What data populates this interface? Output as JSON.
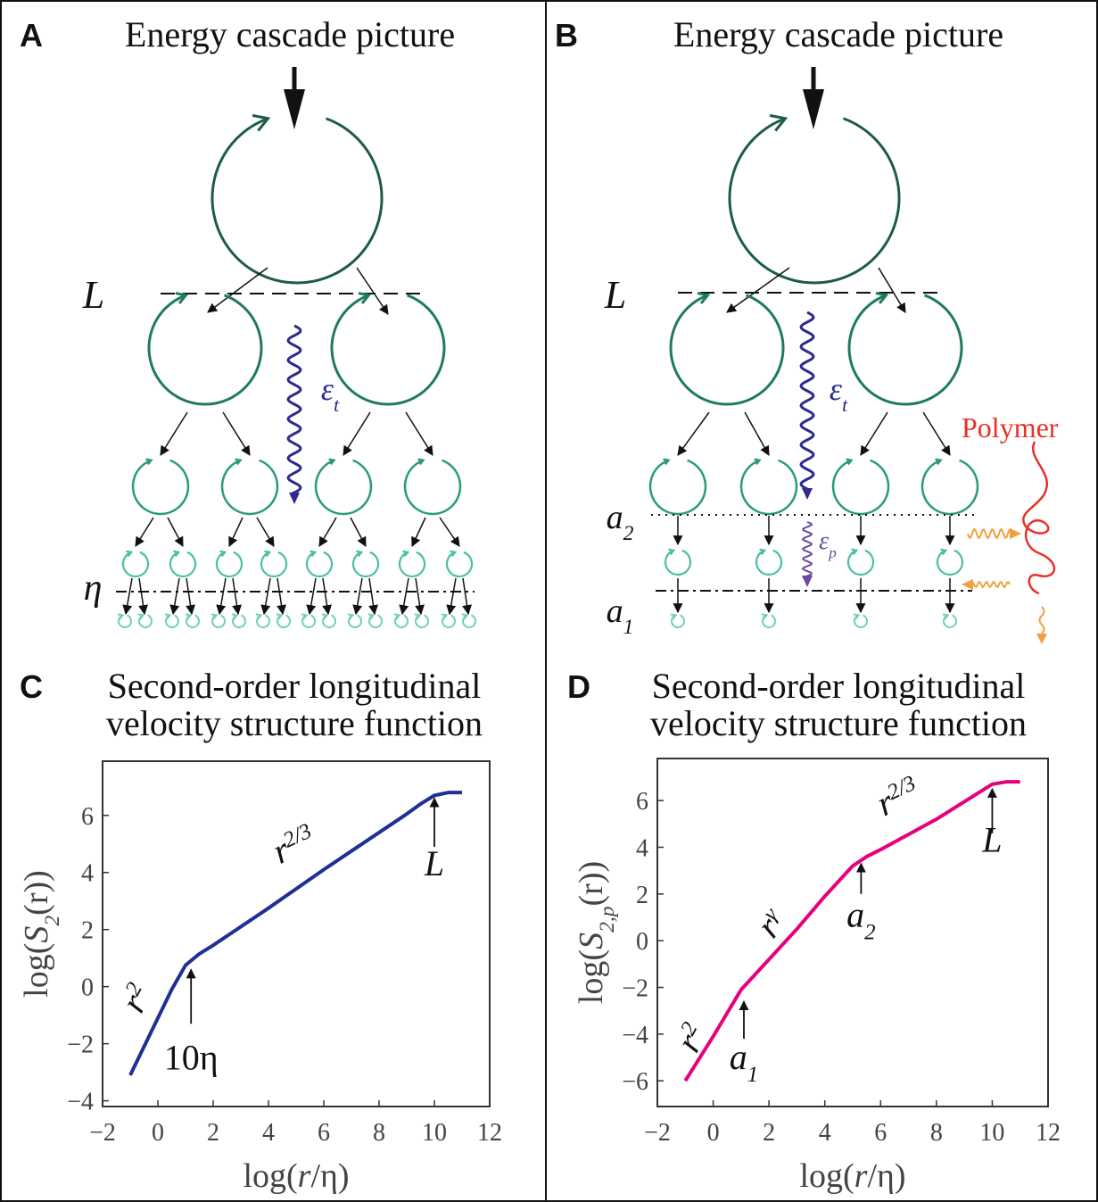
{
  "panels": [
    {
      "letter": "A",
      "title": "Energy cascade picture",
      "labels": [
        {
          "symbol": "L"
        },
        {
          "symbol": "ε",
          "subscript": "t"
        },
        {
          "symbol": "η"
        }
      ]
    },
    {
      "letter": "B",
      "title": "Energy cascade picture",
      "labels": [
        {
          "symbol": "L"
        },
        {
          "symbol": "ε",
          "subscript": "t"
        },
        {
          "symbol": "a",
          "subscript": "2"
        },
        {
          "symbol": "ε",
          "subscript": "p"
        },
        {
          "symbol": "a",
          "subscript": "1"
        },
        {
          "before": "Polymer"
        }
      ]
    }
  ],
  "chart_data": [
    {
      "type": "line",
      "panel_label": "C",
      "title": [
        "Second-order longitudinal",
        "velocity structure function"
      ],
      "x_label": {
        "before": "log(",
        "symbol": "r",
        "after": "/η)"
      },
      "y_label": {
        "before": "log(",
        "symbol": "S",
        "subscript": "2",
        "after": "(r))"
      },
      "x": [
        -1,
        0,
        0.5,
        1,
        1.5,
        2,
        4,
        6,
        8,
        9,
        9.5,
        10,
        10.5,
        11
      ],
      "values": [
        -3.1,
        -1.1,
        -0.1,
        0.75,
        1.15,
        1.45,
        2.75,
        4.1,
        5.4,
        6.05,
        6.4,
        6.7,
        6.8,
        6.8
      ],
      "color": "#1f2f96",
      "xlim": [
        -2,
        12
      ],
      "ylim": [
        -4.2,
        7.9
      ],
      "xticks": [
        {
          "value": -2,
          "label": "−2"
        },
        0,
        2,
        4,
        6,
        8,
        10,
        12
      ],
      "yticks": [
        {
          "value": -4,
          "label": "−4"
        },
        {
          "value": -2,
          "label": "−2"
        },
        0,
        2,
        4,
        6
      ],
      "annotations": [
        {
          "symbol": "r",
          "superscript": "2"
        },
        {
          "symbol": "r",
          "superscript": "2/3"
        },
        {
          "symbol": "L"
        },
        {
          "before": "10η"
        }
      ]
    },
    {
      "type": "line",
      "panel_label": "D",
      "title": [
        "Second-order longitudinal",
        "velocity structure function"
      ],
      "x_label": {
        "before": "log(",
        "symbol": "r",
        "after": "/η)"
      },
      "y_label": {
        "before": "log(",
        "symbol": "S",
        "subscript": "2,p",
        "after": "(r))"
      },
      "x": [
        -1,
        0,
        1,
        2,
        3,
        4,
        5,
        5.5,
        6,
        8,
        10,
        10.5,
        11
      ],
      "values": [
        -6,
        -4.1,
        -2.1,
        -0.8,
        0.5,
        1.9,
        3.2,
        3.6,
        3.9,
        5.2,
        6.7,
        6.8,
        6.8
      ],
      "color": "#e6007e",
      "xlim": [
        -2,
        12
      ],
      "ylim": [
        -7.1,
        7.8
      ],
      "xticks": [
        {
          "value": -2,
          "label": "−2"
        },
        0,
        2,
        4,
        6,
        8,
        10,
        12
      ],
      "yticks": [
        {
          "value": -6,
          "label": "−6"
        },
        {
          "value": -4,
          "label": "−4"
        },
        {
          "value": -2,
          "label": "−2"
        },
        0,
        2,
        4,
        6
      ],
      "annotations": [
        {
          "symbol": "r",
          "superscript": "2"
        },
        {
          "symbol": "r",
          "superscript": "γ"
        },
        {
          "symbol": "r",
          "superscript": "2/3"
        },
        {
          "symbol": "L"
        },
        {
          "symbol": "a",
          "subscript": "2"
        },
        {
          "symbol": "a",
          "subscript": "1"
        }
      ]
    }
  ]
}
